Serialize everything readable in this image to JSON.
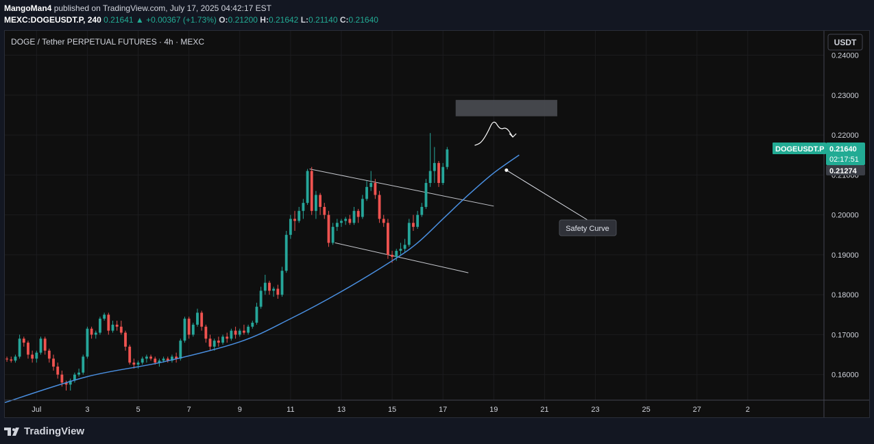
{
  "header": {
    "author": "MangoMan4",
    "published_text": "published on TradingView.com, July 17, 2025 04:42:17 EST",
    "symbol_interval": "MEXC:DOGEUSDT.P, 240",
    "last": "0.21641",
    "change": "▲ +0.00367 (+1.73%)",
    "o_label": "O:",
    "o_value": "0.21200",
    "h_label": "H:",
    "h_value": "0.21642",
    "l_label": "L:",
    "l_value": "0.21140",
    "c_label": "C:",
    "c_value": "0.21640"
  },
  "chart_title": "DOGE / Tether PERPETUAL FUTURES · 4h · MEXC",
  "currency_button": "USDT",
  "price_badge": {
    "symbol": "DOGEUSDT.P",
    "price": "0.21640",
    "countdown": "02:17:51",
    "curve_price": "0.21274"
  },
  "annotation": {
    "label": "Safety Curve"
  },
  "footer": {
    "logo_text": "TradingView"
  },
  "colors": {
    "up": "#26a69a",
    "down": "#ef5350",
    "curve": "#4a90e2",
    "background": "#0f0f0f",
    "badge": "#22ab94"
  },
  "chart_data": {
    "type": "candlestick",
    "y_ticks": [
      "0.24000",
      "0.23000",
      "0.22000",
      "0.21000",
      "0.20000",
      "0.19000",
      "0.18000",
      "0.17000",
      "0.16000"
    ],
    "x_ticks": [
      "Jul",
      "3",
      "5",
      "7",
      "9",
      "11",
      "13",
      "15",
      "17",
      "19",
      "21",
      "23",
      "25",
      "27",
      "2"
    ],
    "ylim": [
      0.1536,
      0.2461
    ],
    "xlim": [
      "2025-06-29 18:00",
      "2025-08-01 00:00"
    ],
    "candle_interval": "4h",
    "first_candle": "2025-06-29 20:00",
    "candles": [
      [
        0.164,
        0.1645,
        0.1632,
        0.1638
      ],
      [
        0.1638,
        0.1645,
        0.163,
        0.1635
      ],
      [
        0.1635,
        0.165,
        0.163,
        0.1645
      ],
      [
        0.1645,
        0.17,
        0.164,
        0.169
      ],
      [
        0.169,
        0.1695,
        0.167,
        0.168
      ],
      [
        0.168,
        0.1685,
        0.164,
        0.165
      ],
      [
        0.165,
        0.166,
        0.163,
        0.164
      ],
      [
        0.164,
        0.166,
        0.163,
        0.1655
      ],
      [
        0.1655,
        0.1695,
        0.165,
        0.169
      ],
      [
        0.169,
        0.1695,
        0.165,
        0.166
      ],
      [
        0.166,
        0.1665,
        0.163,
        0.164
      ],
      [
        0.164,
        0.165,
        0.161,
        0.162
      ],
      [
        0.162,
        0.163,
        0.159,
        0.16
      ],
      [
        0.16,
        0.161,
        0.157,
        0.158
      ],
      [
        0.158,
        0.1585,
        0.156,
        0.1575
      ],
      [
        0.1575,
        0.159,
        0.156,
        0.1585
      ],
      [
        0.1585,
        0.1605,
        0.158,
        0.16
      ],
      [
        0.16,
        0.1615,
        0.1595,
        0.1605
      ],
      [
        0.1605,
        0.165,
        0.16,
        0.1645
      ],
      [
        0.1645,
        0.172,
        0.164,
        0.1715
      ],
      [
        0.1715,
        0.172,
        0.169,
        0.17
      ],
      [
        0.17,
        0.171,
        0.169,
        0.1705
      ],
      [
        0.1705,
        0.1745,
        0.17,
        0.174
      ],
      [
        0.174,
        0.1755,
        0.1735,
        0.175
      ],
      [
        0.175,
        0.1755,
        0.17,
        0.171
      ],
      [
        0.171,
        0.1735,
        0.1705,
        0.1725
      ],
      [
        0.1725,
        0.1735,
        0.171,
        0.172
      ],
      [
        0.172,
        0.1735,
        0.17,
        0.1705
      ],
      [
        0.1705,
        0.171,
        0.166,
        0.167
      ],
      [
        0.167,
        0.1675,
        0.1625,
        0.163
      ],
      [
        0.163,
        0.164,
        0.1615,
        0.1625
      ],
      [
        0.1625,
        0.1635,
        0.1615,
        0.163
      ],
      [
        0.163,
        0.1645,
        0.1625,
        0.164
      ],
      [
        0.164,
        0.165,
        0.163,
        0.1645
      ],
      [
        0.1645,
        0.165,
        0.1635,
        0.164
      ],
      [
        0.164,
        0.1645,
        0.1625,
        0.163
      ],
      [
        0.163,
        0.164,
        0.162,
        0.1635
      ],
      [
        0.1635,
        0.1645,
        0.163,
        0.164
      ],
      [
        0.164,
        0.1645,
        0.163,
        0.1635
      ],
      [
        0.1635,
        0.165,
        0.163,
        0.1645
      ],
      [
        0.1645,
        0.1655,
        0.163,
        0.164
      ],
      [
        0.164,
        0.169,
        0.1635,
        0.1685
      ],
      [
        0.1685,
        0.1745,
        0.168,
        0.174
      ],
      [
        0.174,
        0.1745,
        0.169,
        0.17
      ],
      [
        0.17,
        0.173,
        0.1695,
        0.1725
      ],
      [
        0.1725,
        0.1765,
        0.172,
        0.1755
      ],
      [
        0.1755,
        0.176,
        0.171,
        0.172
      ],
      [
        0.172,
        0.1725,
        0.168,
        0.169
      ],
      [
        0.169,
        0.17,
        0.166,
        0.167
      ],
      [
        0.167,
        0.169,
        0.166,
        0.1685
      ],
      [
        0.1685,
        0.1695,
        0.167,
        0.168
      ],
      [
        0.168,
        0.17,
        0.1675,
        0.1695
      ],
      [
        0.1695,
        0.1705,
        0.168,
        0.169
      ],
      [
        0.169,
        0.1715,
        0.1685,
        0.171
      ],
      [
        0.171,
        0.172,
        0.169,
        0.17
      ],
      [
        0.17,
        0.1715,
        0.1695,
        0.171
      ],
      [
        0.171,
        0.1725,
        0.17,
        0.1705
      ],
      [
        0.1705,
        0.1725,
        0.17,
        0.172
      ],
      [
        0.172,
        0.1735,
        0.1715,
        0.173
      ],
      [
        0.173,
        0.178,
        0.1725,
        0.177
      ],
      [
        0.177,
        0.182,
        0.1765,
        0.181
      ],
      [
        0.181,
        0.185,
        0.18,
        0.183
      ],
      [
        0.183,
        0.1835,
        0.18,
        0.181
      ],
      [
        0.181,
        0.182,
        0.1795,
        0.1815
      ],
      [
        0.1815,
        0.1825,
        0.179,
        0.18
      ],
      [
        0.18,
        0.187,
        0.1795,
        0.186
      ],
      [
        0.186,
        0.196,
        0.1855,
        0.195
      ],
      [
        0.195,
        0.2,
        0.194,
        0.199
      ],
      [
        0.199,
        0.201,
        0.196,
        0.1985
      ],
      [
        0.1985,
        0.202,
        0.198,
        0.201
      ],
      [
        0.201,
        0.204,
        0.199,
        0.203
      ],
      [
        0.203,
        0.2115,
        0.2025,
        0.211
      ],
      [
        0.211,
        0.212,
        0.2,
        0.201
      ],
      [
        0.201,
        0.206,
        0.199,
        0.205
      ],
      [
        0.205,
        0.2055,
        0.2,
        0.202
      ],
      [
        0.202,
        0.203,
        0.199,
        0.2
      ],
      [
        0.2,
        0.201,
        0.192,
        0.193
      ],
      [
        0.193,
        0.198,
        0.1925,
        0.197
      ],
      [
        0.197,
        0.199,
        0.196,
        0.198
      ],
      [
        0.198,
        0.199,
        0.197,
        0.1985
      ],
      [
        0.1985,
        0.1995,
        0.1975,
        0.199
      ],
      [
        0.199,
        0.2,
        0.1975,
        0.198
      ],
      [
        0.198,
        0.202,
        0.1975,
        0.201
      ],
      [
        0.201,
        0.2015,
        0.198,
        0.1995
      ],
      [
        0.1995,
        0.205,
        0.199,
        0.204
      ],
      [
        0.204,
        0.2085,
        0.2035,
        0.207
      ],
      [
        0.207,
        0.211,
        0.206,
        0.208
      ],
      [
        0.208,
        0.209,
        0.204,
        0.205
      ],
      [
        0.205,
        0.206,
        0.198,
        0.199
      ],
      [
        0.199,
        0.2,
        0.197,
        0.198
      ],
      [
        0.198,
        0.199,
        0.189,
        0.19
      ],
      [
        0.19,
        0.191,
        0.188,
        0.1895
      ],
      [
        0.1895,
        0.1915,
        0.1885,
        0.191
      ],
      [
        0.191,
        0.193,
        0.19,
        0.1915
      ],
      [
        0.1915,
        0.194,
        0.1905,
        0.1925
      ],
      [
        0.1925,
        0.199,
        0.192,
        0.198
      ],
      [
        0.198,
        0.2,
        0.196,
        0.197
      ],
      [
        0.197,
        0.201,
        0.1965,
        0.2
      ],
      [
        0.2,
        0.203,
        0.1995,
        0.202
      ],
      [
        0.202,
        0.209,
        0.2015,
        0.208
      ],
      [
        0.208,
        0.2205,
        0.207,
        0.211
      ],
      [
        0.211,
        0.217,
        0.208,
        0.213
      ],
      [
        0.213,
        0.2135,
        0.207,
        0.208
      ],
      [
        0.208,
        0.213,
        0.2075,
        0.212
      ],
      [
        0.212,
        0.217,
        0.2114,
        0.2164
      ]
    ],
    "safety_curve": {
      "label": "Safety Curve",
      "points": [
        [
          "2025-06-29 18:00",
          0.153
        ],
        [
          "2025-07-03 00:00",
          0.1595
        ],
        [
          "2025-07-06 00:00",
          0.1632
        ],
        [
          "2025-07-09 00:00",
          0.1682
        ],
        [
          "2025-07-11 00:00",
          0.174
        ],
        [
          "2025-07-13 00:00",
          0.1808
        ],
        [
          "2025-07-15 00:00",
          0.1885
        ],
        [
          "2025-07-16 00:00",
          0.193
        ],
        [
          "2025-07-17 00:00",
          0.199
        ],
        [
          "2025-07-18 00:00",
          0.205
        ],
        [
          "2025-07-19 00:00",
          0.2105
        ],
        [
          "2025-07-20 00:00",
          0.215
        ]
      ],
      "label_anchor": [
        "2025-07-19 12:00",
        0.2112
      ]
    },
    "channel": {
      "upper": [
        [
          "2025-07-11 18:00",
          0.2115
        ],
        [
          "2025-07-19 00:00",
          0.2022
        ]
      ],
      "lower": [
        [
          "2025-07-12 18:00",
          0.193
        ],
        [
          "2025-07-18 00:00",
          0.1855
        ]
      ]
    },
    "target_zone": {
      "from": "2025-07-17 12:00",
      "to": "2025-07-21 12:00",
      "top": 0.2288,
      "bottom": 0.2247
    },
    "projection_path": [
      [
        "2025-07-18 06:00",
        0.2174
      ],
      [
        "2025-07-18 12:00",
        0.218
      ],
      [
        "2025-07-18 18:00",
        0.2205
      ],
      [
        "2025-07-19 00:00",
        0.224
      ],
      [
        "2025-07-19 06:00",
        0.2213
      ],
      [
        "2025-07-19 12:00",
        0.222
      ],
      [
        "2025-07-19 18:00",
        0.2195
      ]
    ]
  }
}
